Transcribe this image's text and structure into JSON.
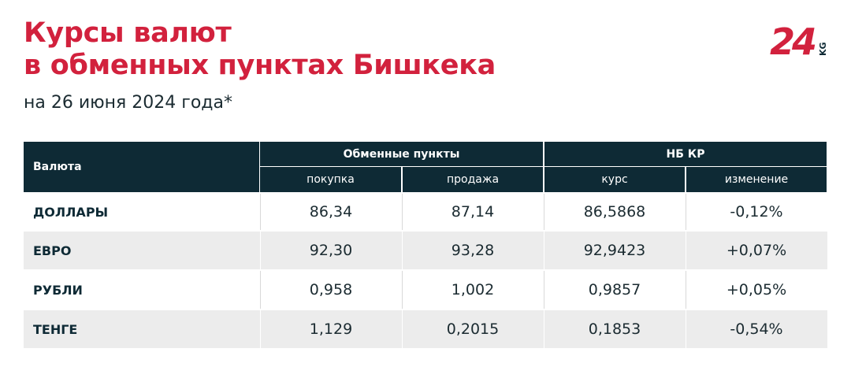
{
  "header": {
    "title_lines": [
      "Курсы валют",
      "в обменных пунктах Бишкека"
    ],
    "subtitle": "на 26 июня 2024 года*",
    "logo": {
      "main": "24",
      "suffix": "KG"
    }
  },
  "table": {
    "corner": "Валюта",
    "groups": [
      "Обменные пункты",
      "НБ КР"
    ],
    "columns": [
      "покупка",
      "продажа",
      "курс",
      "изменение"
    ],
    "rows": [
      [
        "ДОЛЛАРЫ",
        "86,34",
        "87,14",
        "86,5868",
        "-0,12%"
      ],
      [
        "ЕВРО",
        "92,30",
        "93,28",
        "92,9423",
        "+0,07%"
      ],
      [
        "РУБЛИ",
        "0,958",
        "1,002",
        "0,9857",
        "+0,05%"
      ],
      [
        "ТЕНГЕ",
        "1,129",
        "0,2015",
        "0,1853",
        "-0,54%"
      ]
    ]
  }
}
